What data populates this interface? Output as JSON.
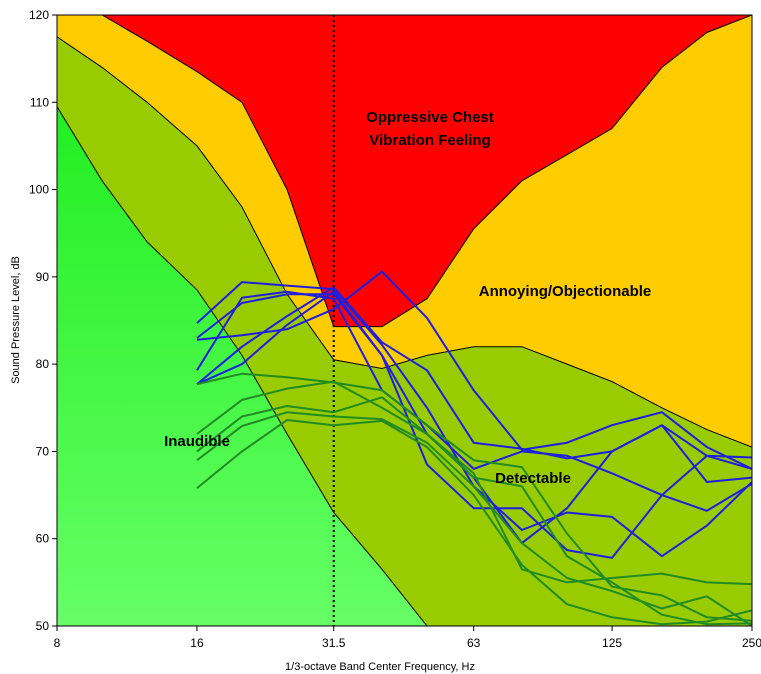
{
  "chart_data": {
    "type": "line",
    "xlabel": "1/3-octave Band Center Frequency, Hz",
    "ylabel": "Sound Pressure Level, dB",
    "x_scale": "log",
    "xlim": [
      8,
      250
    ],
    "ylim": [
      50,
      120
    ],
    "x_ticks": [
      8,
      16,
      31.5,
      63,
      125,
      250
    ],
    "x_tick_labels": [
      "8",
      "16",
      "31.5",
      "63",
      "125",
      "250"
    ],
    "y_ticks": [
      50,
      60,
      70,
      80,
      90,
      100,
      110,
      120
    ],
    "grid": false,
    "reference_line": {
      "x": 31.5,
      "style": "dotted"
    },
    "colors": {
      "inaudible_bright": "#22ee22",
      "inaudible_light": "#66ff66",
      "detectable": "#99cc00",
      "annoying": "#ffcc00",
      "oppressive": "#ff0000",
      "blue_series": "#1f1fdd",
      "green_series": "#228b22",
      "boundary": "#000000"
    },
    "regions": [
      {
        "label": "Inaudible"
      },
      {
        "label": "Detectable"
      },
      {
        "label": "Annoying/Objectionable"
      },
      {
        "label": "Oppressive Chest Vibration Feeling",
        "label_lines": [
          "Oppressive Chest",
          "Vibration Feeling"
        ]
      }
    ],
    "boundaries": [
      {
        "name": "inaudible-upper",
        "points": [
          [
            8,
            109.5
          ],
          [
            10,
            101
          ],
          [
            12.5,
            94
          ],
          [
            16,
            88.5
          ],
          [
            20,
            81
          ],
          [
            25,
            72
          ],
          [
            31.5,
            63
          ],
          [
            40,
            56.5
          ],
          [
            50,
            50
          ]
        ]
      },
      {
        "name": "detectable-upper",
        "points": [
          [
            8,
            117.5
          ],
          [
            10,
            114
          ],
          [
            12.5,
            110
          ],
          [
            16,
            105
          ],
          [
            20,
            98
          ],
          [
            25,
            88
          ],
          [
            31.5,
            80.5
          ],
          [
            40,
            79.5
          ],
          [
            50,
            81
          ],
          [
            63,
            82
          ],
          [
            80,
            82
          ],
          [
            100,
            80
          ],
          [
            125,
            78
          ],
          [
            160,
            75
          ],
          [
            200,
            72.5
          ],
          [
            250,
            70.5
          ]
        ]
      },
      {
        "name": "oppressive-lower",
        "points": [
          [
            8,
            120
          ],
          [
            10,
            120
          ],
          [
            12.5,
            117
          ],
          [
            16,
            113.5
          ],
          [
            20,
            110
          ],
          [
            25,
            100
          ],
          [
            31.5,
            84.3
          ],
          [
            40,
            84.3
          ],
          [
            50,
            87.5
          ],
          [
            63,
            95.5
          ],
          [
            80,
            101
          ],
          [
            100,
            104
          ],
          [
            125,
            107
          ],
          [
            160,
            114
          ],
          [
            200,
            118
          ],
          [
            250,
            120
          ]
        ]
      }
    ],
    "x": [
      16,
      20,
      25,
      31.5,
      40,
      50,
      63,
      80,
      100,
      125,
      160,
      200,
      250
    ],
    "series": [
      {
        "values": [
          84.7,
          89.4,
          89.0,
          88.6,
          82.2,
          75.0,
          66.0,
          61.0,
          63.0,
          62.5,
          58.0,
          61.5,
          66.5
        ]
      },
      {
        "values": [
          83.0,
          87.0,
          88.0,
          88.0,
          81.0,
          68.5,
          63.5,
          63.5,
          58.7,
          57.8,
          65.0,
          69.5,
          68.0
        ]
      },
      {
        "values": [
          79.3,
          87.6,
          88.3,
          87.5,
          77.0,
          73.0,
          68.0,
          70.0,
          69.5,
          67.5,
          65.0,
          63.2,
          66.3
        ]
      },
      {
        "values": [
          77.7,
          80.0,
          84.5,
          88.3,
          81.0,
          72.0,
          67.0,
          59.5,
          63.5,
          70.0,
          73.0,
          69.5,
          69.3
        ]
      },
      {
        "values": [
          82.8,
          83.3,
          84.0,
          86.3,
          90.6,
          85.3,
          77.0,
          70.2,
          71.0,
          73.0,
          74.5,
          70.5,
          68.0
        ]
      },
      {
        "values": [
          77.7,
          82.0,
          85.5,
          88.8,
          82.5,
          79.3,
          71.0,
          70.3,
          69.2,
          70.0,
          73.0,
          66.5,
          67.0
        ]
      },
      {
        "values": [
          77.7,
          78.9,
          78.5,
          77.9,
          77.0,
          73.0,
          69.0,
          68.2,
          60.6,
          54.5,
          53.5,
          51.0,
          50.6
        ]
      },
      {
        "values": [
          72.0,
          75.9,
          77.2,
          78.0,
          75.0,
          72.0,
          67.5,
          56.5,
          55.0,
          55.5,
          56.0,
          55.0,
          54.8
        ]
      },
      {
        "values": [
          70.0,
          74.0,
          75.2,
          74.5,
          76.2,
          72.0,
          67.0,
          66.0,
          58.0,
          55.0,
          51.3,
          50.2,
          50.3
        ]
      },
      {
        "values": [
          69.0,
          72.9,
          74.5,
          74.0,
          73.7,
          71.0,
          66.0,
          59.5,
          55.5,
          54.0,
          52.0,
          53.4,
          50.0
        ]
      },
      {
        "values": [
          65.8,
          70.0,
          73.6,
          73.0,
          73.5,
          70.5,
          65.0,
          57.0,
          52.5,
          51.0,
          50.2,
          50.5,
          51.8
        ]
      }
    ]
  }
}
